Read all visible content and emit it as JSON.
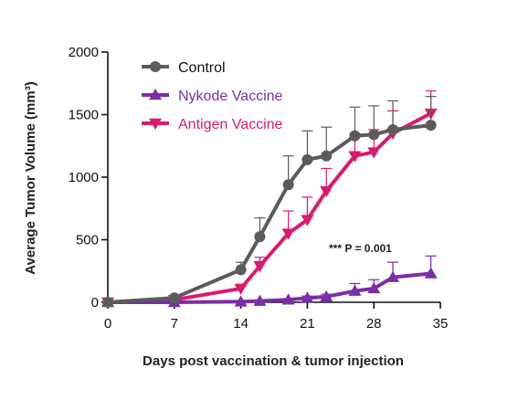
{
  "chart_data": {
    "type": "line",
    "xlabel": "Days post vaccination & tumor injection",
    "ylabel": "Average Tumor Volume (mm³)",
    "xlim": [
      0,
      35
    ],
    "ylim": [
      0,
      2000
    ],
    "xticks": [
      0,
      7,
      14,
      21,
      28,
      35
    ],
    "yticks": [
      0,
      500,
      1000,
      1500,
      2000
    ],
    "grid": false,
    "legend_position": "top-left",
    "annotation": "*** P = 0.001",
    "series": [
      {
        "name": "Control",
        "color": "#5b5b5b",
        "marker": "circle",
        "points": [
          {
            "x": 0,
            "y": 0,
            "err": 0
          },
          {
            "x": 7,
            "y": 35,
            "err": 8
          },
          {
            "x": 14,
            "y": 260,
            "err": 60
          },
          {
            "x": 16,
            "y": 525,
            "err": 150
          },
          {
            "x": 19,
            "y": 940,
            "err": 230
          },
          {
            "x": 21,
            "y": 1140,
            "err": 230
          },
          {
            "x": 23,
            "y": 1170,
            "err": 230
          },
          {
            "x": 26,
            "y": 1330,
            "err": 230
          },
          {
            "x": 28,
            "y": 1340,
            "err": 230
          },
          {
            "x": 30,
            "y": 1380,
            "err": 230
          },
          {
            "x": 34,
            "y": 1415,
            "err": 230
          }
        ]
      },
      {
        "name": "Nykode Vaccine",
        "color": "#7b2ea6",
        "marker": "triangle-up",
        "points": [
          {
            "x": 0,
            "y": 0,
            "err": 0
          },
          {
            "x": 7,
            "y": 0,
            "err": 0
          },
          {
            "x": 14,
            "y": 5,
            "err": 2
          },
          {
            "x": 16,
            "y": 10,
            "err": 5
          },
          {
            "x": 19,
            "y": 20,
            "err": 10
          },
          {
            "x": 21,
            "y": 35,
            "err": 15
          },
          {
            "x": 23,
            "y": 45,
            "err": 20
          },
          {
            "x": 26,
            "y": 90,
            "err": 60
          },
          {
            "x": 28,
            "y": 110,
            "err": 70
          },
          {
            "x": 30,
            "y": 200,
            "err": 120
          },
          {
            "x": 34,
            "y": 230,
            "err": 140
          }
        ]
      },
      {
        "name": "Antigen Vaccine",
        "color": "#d81b72",
        "marker": "triangle-down",
        "points": [
          {
            "x": 0,
            "y": 0,
            "err": 0
          },
          {
            "x": 7,
            "y": 20,
            "err": 5
          },
          {
            "x": 14,
            "y": 110,
            "err": 20
          },
          {
            "x": 16,
            "y": 290,
            "err": 70
          },
          {
            "x": 19,
            "y": 550,
            "err": 180
          },
          {
            "x": 21,
            "y": 660,
            "err": 180
          },
          {
            "x": 23,
            "y": 890,
            "err": 180
          },
          {
            "x": 26,
            "y": 1170,
            "err": 180
          },
          {
            "x": 28,
            "y": 1200,
            "err": 180
          },
          {
            "x": 30,
            "y": 1350,
            "err": 180
          },
          {
            "x": 34,
            "y": 1510,
            "err": 180
          }
        ]
      }
    ]
  }
}
